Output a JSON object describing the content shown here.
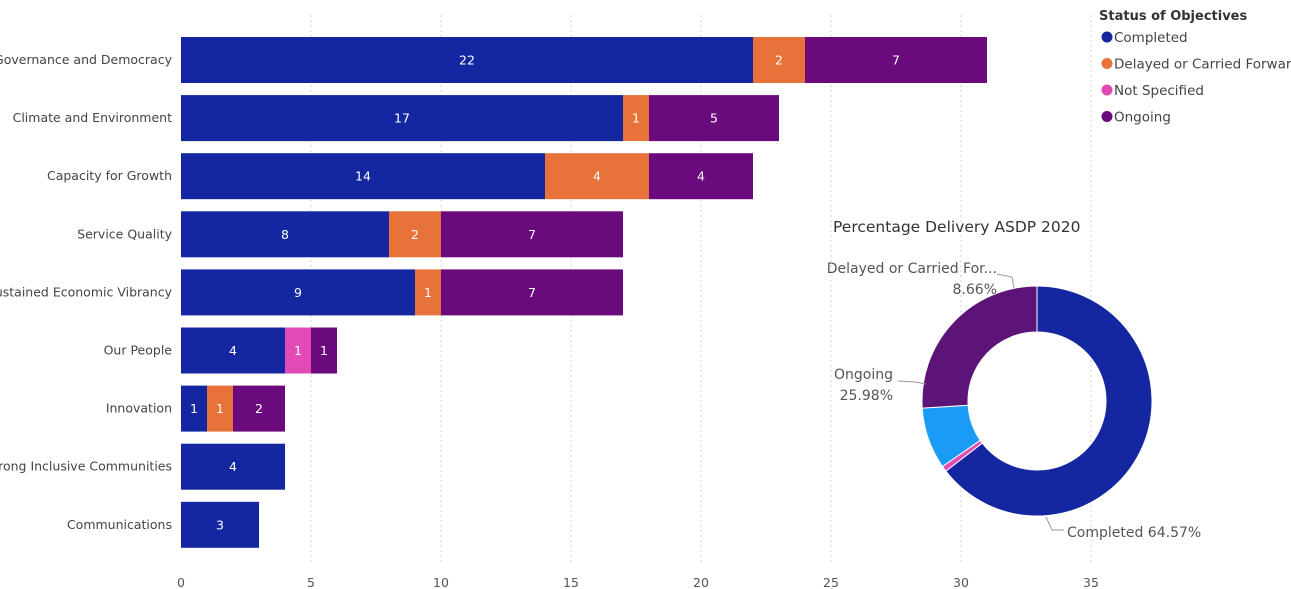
{
  "chart_data": [
    {
      "type": "bar",
      "orientation": "horizontal",
      "stacked": true,
      "categories": [
        "Governance and Democracy",
        "Climate and Environment",
        "Capacity for Growth",
        "Service Quality",
        "Sustained Economic Vibrancy",
        "Our People",
        "Innovation",
        "Strong Inclusive Communities",
        "Communications"
      ],
      "series": [
        {
          "name": "Completed",
          "color": "#1427a0",
          "values": [
            22,
            17,
            14,
            8,
            9,
            4,
            1,
            4,
            3
          ]
        },
        {
          "name": "Delayed or Carried Forward",
          "color": "#e8733a",
          "values": [
            2,
            1,
            4,
            2,
            1,
            0,
            1,
            0,
            0
          ]
        },
        {
          "name": "Not Specified",
          "color": "#e24ab5",
          "values": [
            0,
            0,
            0,
            0,
            0,
            1,
            0,
            0,
            0
          ]
        },
        {
          "name": "Ongoing",
          "color": "#6b0a7c",
          "values": [
            7,
            5,
            4,
            7,
            7,
            1,
            2,
            0,
            0
          ]
        }
      ],
      "xlim": [
        0,
        35
      ],
      "xticks": [
        0,
        5,
        10,
        15,
        20,
        25,
        30,
        35
      ],
      "grid": true,
      "legend": {
        "title": "Status of Objectives",
        "placement": "top-right",
        "entries": [
          "Completed",
          "Delayed or Carried Forward",
          "Not Specified",
          "Ongoing"
        ]
      }
    },
    {
      "type": "pie",
      "donut": true,
      "title": "Percentage Delivery ASDP 2020",
      "slices": [
        {
          "name": "Completed",
          "value": 64.57,
          "color": "#1427a0",
          "label": "Completed 64.57%"
        },
        {
          "name": "Not Specified",
          "value": 0.79,
          "color": "#e24ab5",
          "label": ""
        },
        {
          "name": "Delayed or Carried Forward",
          "value": 8.66,
          "color": "#1a9bf5",
          "label": "Delayed or Carried For...",
          "label2": "8.66%"
        },
        {
          "name": "Ongoing",
          "value": 25.98,
          "color": "#5c1478",
          "label": "Ongoing",
          "label2": "25.98%"
        }
      ]
    }
  ]
}
